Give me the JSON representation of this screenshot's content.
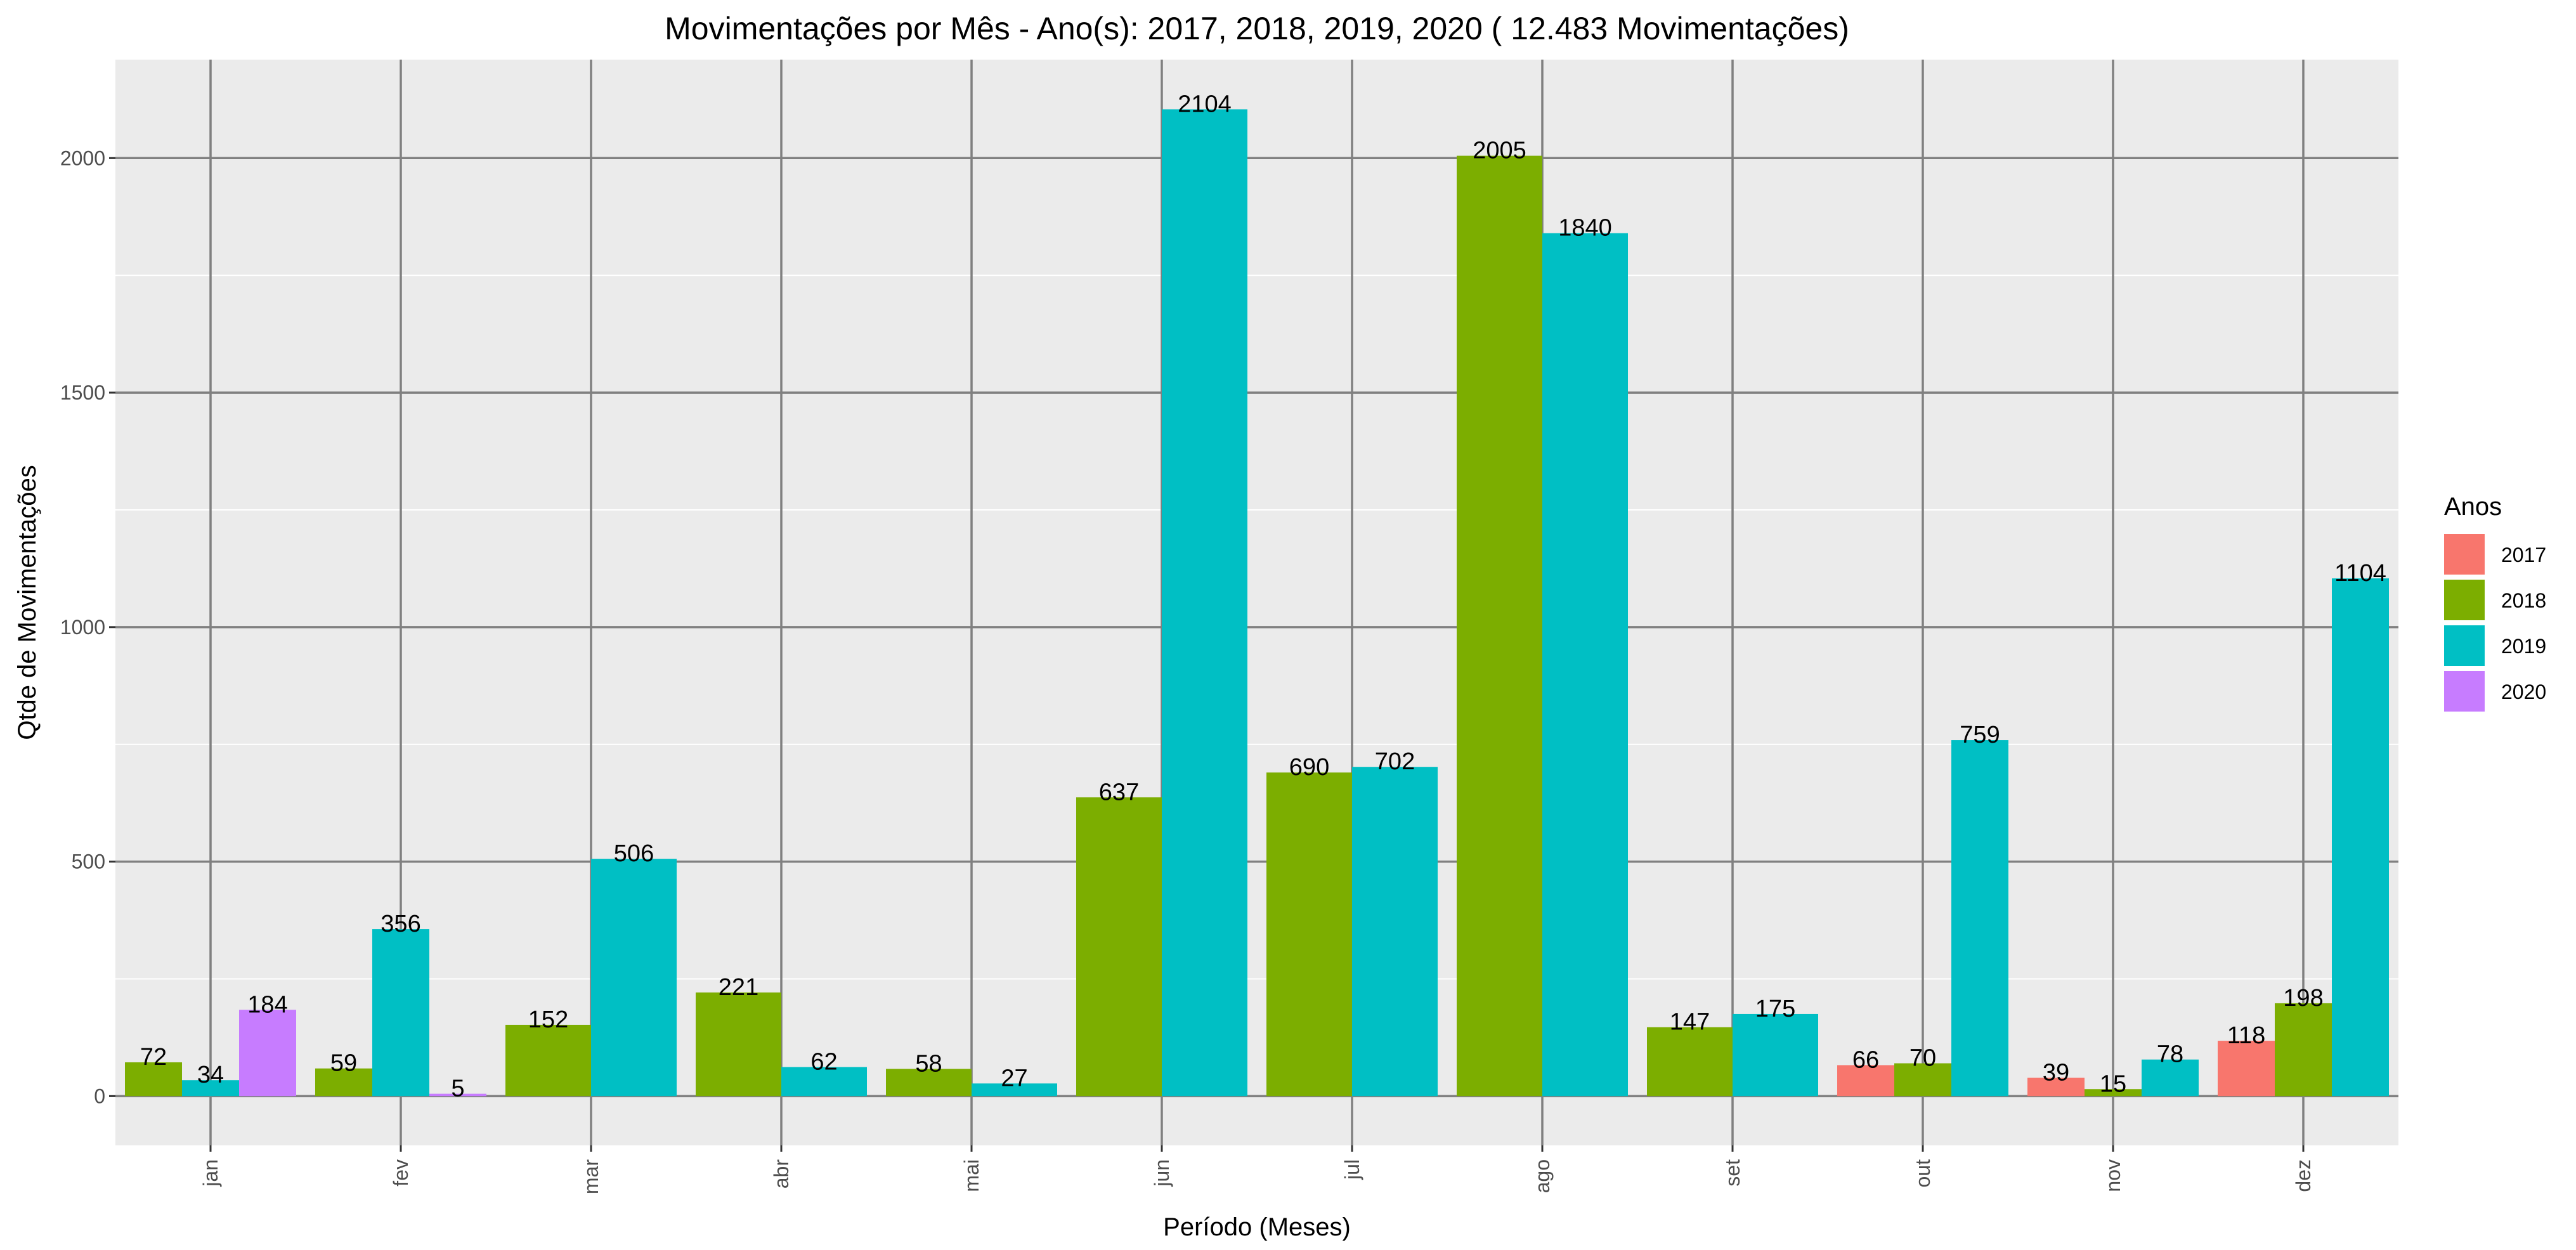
{
  "chart_data": {
    "type": "bar",
    "title": "Movimentações por Mês  - Ano(s):  2017, 2018, 2019, 2020 ( 12.483  Movimentações)",
    "xlabel": "Período (Meses)",
    "ylabel": "Qtde de Movimentações",
    "ylim": [
      -105,
      2210
    ],
    "yticks": [
      0,
      500,
      1000,
      1500,
      2000
    ],
    "grid": true,
    "legend_title": "Anos",
    "legend_position": "right",
    "categories": [
      "jan",
      "fev",
      "mar",
      "abr",
      "mai",
      "jun",
      "jul",
      "ago",
      "set",
      "out",
      "nov",
      "dez"
    ],
    "series": [
      {
        "name": "2017",
        "color": "#F8766D",
        "values": [
          null,
          null,
          null,
          null,
          null,
          null,
          null,
          null,
          null,
          66,
          39,
          118
        ]
      },
      {
        "name": "2018",
        "color": "#7CAE00",
        "values": [
          72,
          59,
          152,
          221,
          58,
          637,
          690,
          2005,
          147,
          70,
          15,
          198
        ]
      },
      {
        "name": "2019",
        "color": "#00BFC4",
        "values": [
          34,
          356,
          506,
          62,
          27,
          2104,
          702,
          1840,
          175,
          759,
          78,
          1104
        ]
      },
      {
        "name": "2020",
        "color": "#C77CFF",
        "values": [
          184,
          5,
          null,
          null,
          null,
          null,
          null,
          null,
          null,
          null,
          null,
          null
        ]
      }
    ]
  }
}
